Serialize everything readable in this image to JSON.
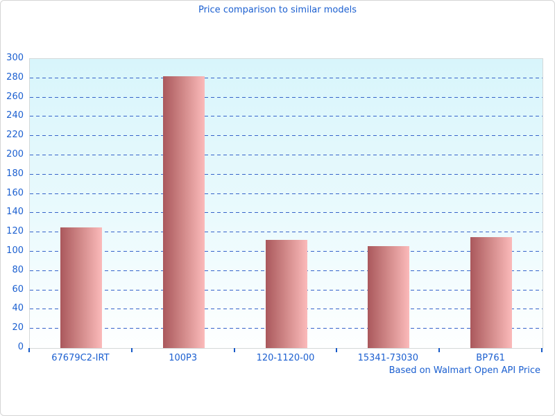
{
  "chart_data": {
    "type": "bar",
    "title": "Price comparison to similar models",
    "caption": "Based on Walmart Open API Price",
    "categories": [
      "67679C2-IRT",
      "100P3",
      "120-1120-00",
      "15341-73030",
      "BP761"
    ],
    "values": [
      125,
      282,
      112,
      106,
      115
    ],
    "xlabel": "",
    "ylabel": "",
    "ylim": [
      0,
      300
    ],
    "yticks": [
      0,
      20,
      40,
      60,
      80,
      100,
      120,
      140,
      160,
      180,
      200,
      220,
      240,
      260,
      280,
      300
    ],
    "grid": "horizontal-dashed",
    "legend": "none",
    "colors": {
      "text_blue": "#1b5fd0",
      "grid_blue": "#3562c9",
      "tick_blue": "#1659c8",
      "bar_gradient_dark": "#aa585c",
      "bar_gradient_mid": "#d28a8a",
      "bar_gradient_light": "#fbbaba",
      "plot_bg_top": "#d8f5fb",
      "plot_bg_bottom": "#feffff",
      "plot_border": "#d4d8d9",
      "page_border": "#d5d5d5"
    }
  }
}
